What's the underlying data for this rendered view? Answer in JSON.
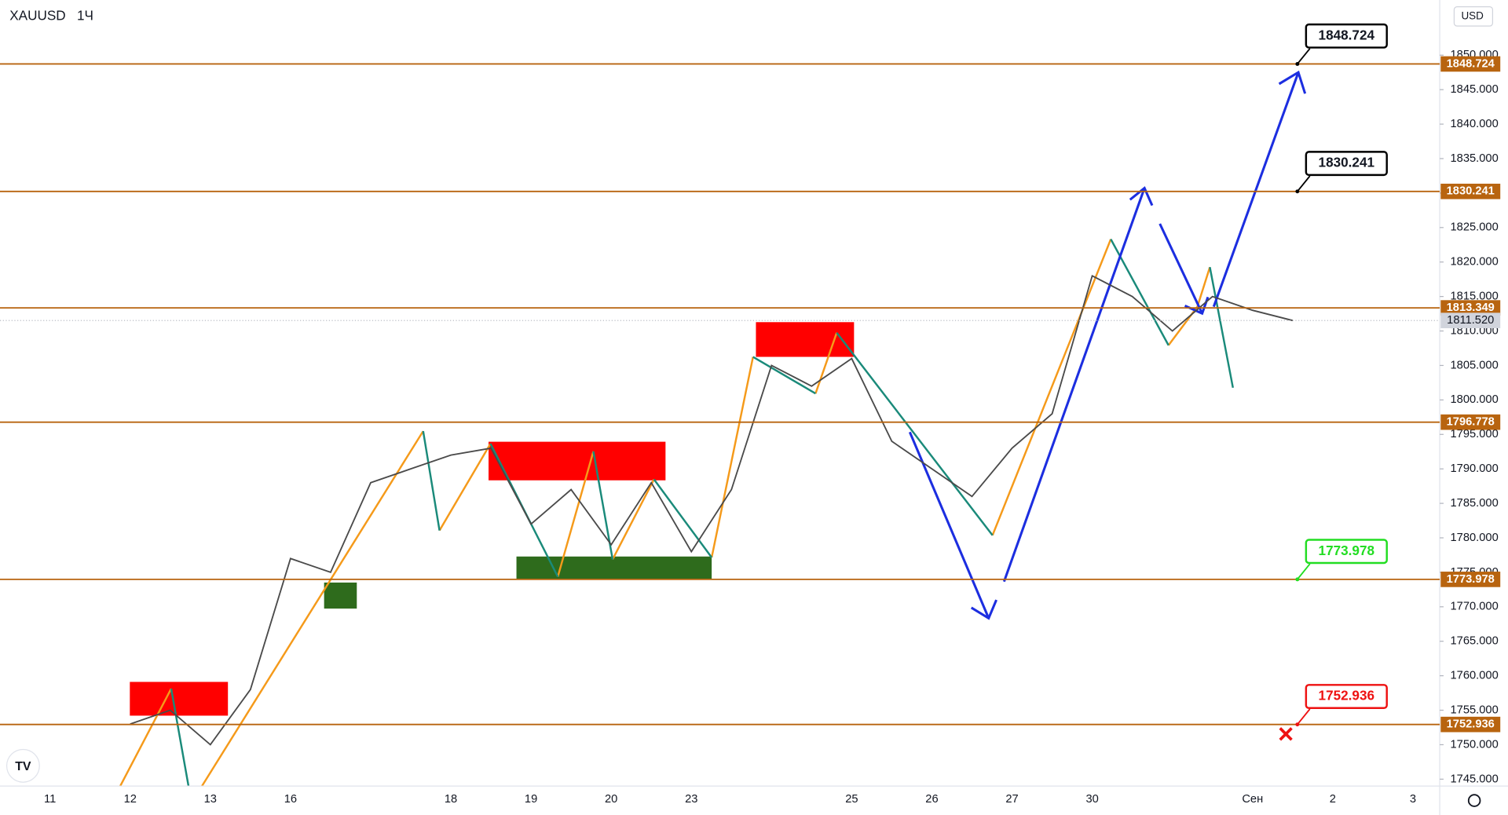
{
  "header": {
    "symbol": "XAUUSD",
    "interval": "1Ч",
    "currency": "USD"
  },
  "chart_data": {
    "type": "line",
    "color": "#4a4a4a",
    "categories": [
      "11",
      null,
      "12",
      null,
      "13",
      null,
      "16",
      null,
      null,
      null,
      "18",
      null,
      "19",
      null,
      "20",
      null,
      "23",
      null,
      null,
      null,
      "25",
      null,
      "26",
      null,
      "27",
      null,
      "30",
      null,
      null,
      null,
      "Сен",
      null,
      "2",
      null,
      "3"
    ],
    "values": [
      null,
      null,
      1753,
      1755,
      1750,
      1758,
      1777,
      1775,
      1788,
      1790,
      1792,
      1793,
      1782,
      1787,
      1779,
      1788,
      1778,
      1787,
      1805,
      1802,
      1806,
      1794,
      1790,
      1786,
      1793,
      1798,
      1818,
      1815,
      1810,
      1815,
      1813,
      1811.52,
      null,
      null,
      null
    ],
    "ylim": [
      1744,
      1858
    ],
    "yticks": [
      {
        "value": 1745,
        "label": "1745.000"
      },
      {
        "value": 1750,
        "label": "1750.000"
      },
      {
        "value": 1755,
        "label": "1755.000"
      },
      {
        "value": 1760,
        "label": "1760.000"
      },
      {
        "value": 1765,
        "label": "1765.000"
      },
      {
        "value": 1770,
        "label": "1770.000"
      },
      {
        "value": 1775,
        "label": "1775.000"
      },
      {
        "value": 1780,
        "label": "1780.000"
      },
      {
        "value": 1785,
        "label": "1785.000"
      },
      {
        "value": 1790,
        "label": "1790.000"
      },
      {
        "value": 1795,
        "label": "1795.000"
      },
      {
        "value": 1800,
        "label": "1800.000"
      },
      {
        "value": 1805,
        "label": "1805.000"
      },
      {
        "value": 1810,
        "label": "1810.000"
      },
      {
        "value": 1815,
        "label": "1815.000"
      },
      {
        "value": 1820,
        "label": "1820.000"
      },
      {
        "value": 1825,
        "label": "1825.000"
      },
      {
        "value": 1830,
        "label": "1830.000"
      },
      {
        "value": 1835,
        "label": "1835.000"
      },
      {
        "value": 1840,
        "label": "1840.000"
      },
      {
        "value": 1845,
        "label": "1845.000"
      },
      {
        "value": 1850,
        "label": "1850.000"
      }
    ],
    "grid": false,
    "level_color": "#b8640f",
    "levels": [
      {
        "value": 1848.724,
        "callout": "#000000"
      },
      {
        "value": 1830.241,
        "callout": "#000000"
      },
      {
        "value": 1813.349
      },
      {
        "value": 1796.778
      },
      {
        "value": 1773.978,
        "callout": "#22dd22"
      },
      {
        "value": 1752.936,
        "callout": "#ee1111"
      }
    ],
    "last_price": {
      "value": 1811.52,
      "label": "1811.520"
    }
  }
}
